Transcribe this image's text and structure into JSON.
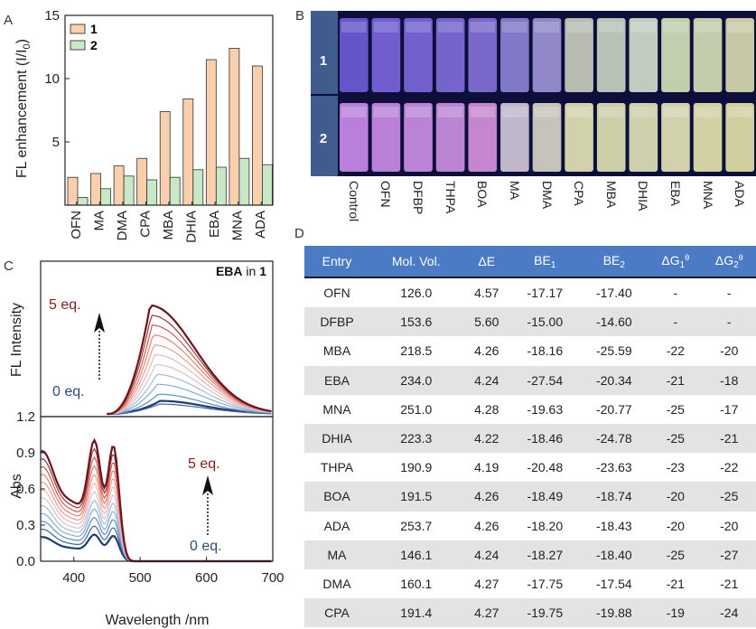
{
  "panels": {
    "a": "A",
    "b": "B",
    "c": "C",
    "d": "D"
  },
  "chart_a": {
    "type": "bar",
    "ylabel_main": "FL enhancement (I/I",
    "ylabel_sub": "0",
    "ylabel_close": ")",
    "categories": [
      "OFN",
      "MA",
      "DMA",
      "CPA",
      "MBA",
      "DHIA",
      "EBA",
      "MNA",
      "ADA"
    ],
    "series": [
      {
        "name": "1",
        "color": "#f9cfae",
        "values": [
          2.2,
          2.5,
          3.1,
          3.7,
          7.4,
          8.4,
          11.5,
          12.4,
          11.0
        ]
      },
      {
        "name": "2",
        "color": "#c9e8c6",
        "values": [
          0.6,
          1.3,
          2.3,
          2.0,
          2.2,
          2.8,
          3.0,
          3.7,
          3.2
        ]
      }
    ],
    "ylim": [
      0,
      15
    ],
    "yticks": [
      "5",
      "10",
      "15"
    ]
  },
  "photo": {
    "rows": [
      "1",
      "2"
    ],
    "samples": [
      "Control",
      "OFN",
      "DFBP",
      "THPA",
      "BOA",
      "MA",
      "DMA",
      "CPA",
      "MBA",
      "DHIA",
      "EBA",
      "MNA",
      "ADA"
    ],
    "row1_colors": [
      "#6d5bd8",
      "#7a64dc",
      "#7b68da",
      "#7e6cd8",
      "#8270d6",
      "#8a82d6",
      "#9c94d4",
      "#c7cbbc",
      "#c5d3c2",
      "#cfdccb",
      "#cfe0b8",
      "#d3dcb6",
      "#d7d8b0"
    ],
    "row2_colors": [
      "#c889e8",
      "#c98ae6",
      "#c98de4",
      "#cb8fe2",
      "#d690dc",
      "#d0c6d8",
      "#d6d2c6",
      "#e3e3b4",
      "#dddfb2",
      "#dedfb5",
      "#e2e3b6",
      "#e3e2ae",
      "#e2e0a8"
    ]
  },
  "chart_c_fl": {
    "type": "line",
    "ylabel": "FL Intensity",
    "title_bold": "EBA",
    "title_rest": " in ",
    "title_num": "1",
    "top_label": "5  eq.",
    "bottom_label": "0  eq.",
    "curves": 12
  },
  "chart_c_abs": {
    "type": "line",
    "ylabel": "Abs",
    "xlabel": "Wavelength /nm",
    "yticks": [
      "0.0",
      "0.3",
      "0.6",
      "0.9",
      "1.2"
    ],
    "xticks": [
      "400",
      "500",
      "600",
      "700"
    ],
    "xlim": [
      350,
      700
    ],
    "ylim": [
      0,
      1.2
    ],
    "top_label": "5  eq.",
    "bottom_label": "0  eq."
  },
  "table": {
    "headers": [
      "Entry",
      "Mol. Vol.",
      "ΔE",
      "BE",
      "BE",
      "ΔG",
      "ΔG"
    ],
    "header_subs": [
      "",
      "",
      "",
      "1",
      "2",
      "1",
      "2"
    ],
    "header_sups": [
      "",
      "",
      "",
      "",
      "",
      "θ",
      "θ"
    ],
    "rows": [
      [
        "OFN",
        "126.0",
        "4.57",
        "-17.17",
        "-17.40",
        "-",
        "-"
      ],
      [
        "DFBP",
        "153.6",
        "5.60",
        "-15.00",
        "-14.60",
        "-",
        "-"
      ],
      [
        "MBA",
        "218.5",
        "4.26",
        "-18.16",
        "-25.59",
        "-22",
        "-20"
      ],
      [
        "EBA",
        "234.0",
        "4.24",
        "-27.54",
        "-20.34",
        "-21",
        "-18"
      ],
      [
        "MNA",
        "251.0",
        "4.28",
        "-19.63",
        "-20.77",
        "-25",
        "-17"
      ],
      [
        "DHIA",
        "223.3",
        "4.22",
        "-18.46",
        "-24.78",
        "-25",
        "-21"
      ],
      [
        "THPA",
        "190.9",
        "4.19",
        "-20.48",
        "-23.63",
        "-23",
        "-22"
      ],
      [
        "BOA",
        "191.5",
        "4.26",
        "-18.49",
        "-18.74",
        "-20",
        "-25"
      ],
      [
        "ADA",
        "253.7",
        "4.26",
        "-18.20",
        "-18.43",
        "-20",
        "-20"
      ],
      [
        "MA",
        "146.1",
        "4.24",
        "-18.27",
        "-18.40",
        "-25",
        "-27"
      ],
      [
        "DMA",
        "160.1",
        "4.27",
        "-17.75",
        "-17.54",
        "-21",
        "-21"
      ],
      [
        "CPA",
        "191.4",
        "4.27",
        "-19.75",
        "-19.88",
        "-19",
        "-24"
      ]
    ]
  }
}
